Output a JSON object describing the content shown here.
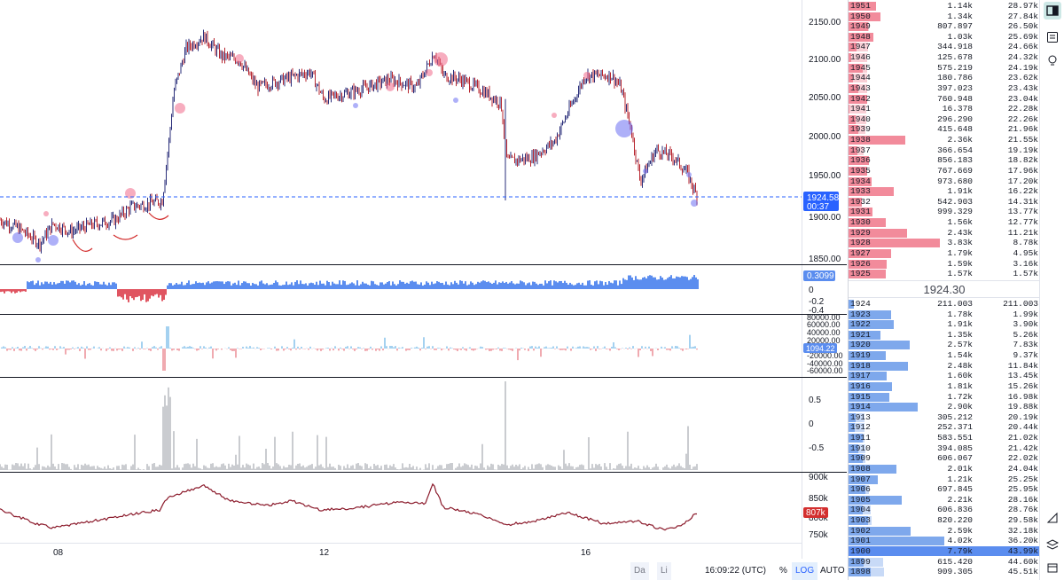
{
  "price_axis": {
    "labels": [
      "2150.00",
      "2100.00",
      "2050.00",
      "2000.00",
      "1950.00",
      "1900.00",
      "1850.00"
    ],
    "current_price": "1924.58",
    "countdown": "00:37"
  },
  "indicator1_axis": {
    "labels": [
      "0",
      "-0.2",
      "-0.4"
    ],
    "badge": "0.3099"
  },
  "indicator2_axis": {
    "labels": [
      "80000.00",
      "60000.00",
      "40000.00",
      "20000.00",
      "-20000.00",
      "-40000.00",
      "-60000.00"
    ],
    "badge": "1094.22"
  },
  "indicator3_axis": {
    "labels": [
      "0.5",
      "0",
      "-0.5"
    ]
  },
  "indicator4_axis": {
    "labels": [
      "900k",
      "850k",
      "800k",
      "750k"
    ],
    "badge": "807k"
  },
  "time_axis": {
    "labels": [
      "08",
      "12",
      "16"
    ]
  },
  "bottom_bar": {
    "range1": "Da",
    "range2": "Li",
    "clock": "16:09:22 (UTC)",
    "percent": "%",
    "log": "LOG",
    "auto": "AUTO"
  },
  "order_book": {
    "mid_price": "1924.30",
    "asks": [
      {
        "price": "1951",
        "vol": "1.14k",
        "cum": "28.97k",
        "v": 1140,
        "c": 28970
      },
      {
        "price": "1950",
        "vol": "1.34k",
        "cum": "27.84k",
        "v": 1340,
        "c": 27840
      },
      {
        "price": "1949",
        "vol": "807.897",
        "cum": "26.50k",
        "v": 808,
        "c": 26500
      },
      {
        "price": "1948",
        "vol": "1.03k",
        "cum": "25.69k",
        "v": 1030,
        "c": 25690
      },
      {
        "price": "1947",
        "vol": "344.918",
        "cum": "24.66k",
        "v": 345,
        "c": 24660
      },
      {
        "price": "1946",
        "vol": "125.678",
        "cum": "24.32k",
        "v": 126,
        "c": 24320
      },
      {
        "price": "1945",
        "vol": "575.219",
        "cum": "24.19k",
        "v": 575,
        "c": 24190
      },
      {
        "price": "1944",
        "vol": "180.786",
        "cum": "23.62k",
        "v": 181,
        "c": 23620
      },
      {
        "price": "1943",
        "vol": "397.023",
        "cum": "23.43k",
        "v": 397,
        "c": 23430
      },
      {
        "price": "1942",
        "vol": "760.948",
        "cum": "23.04k",
        "v": 761,
        "c": 23040
      },
      {
        "price": "1941",
        "vol": "16.378",
        "cum": "22.28k",
        "v": 16,
        "c": 22280
      },
      {
        "price": "1940",
        "vol": "296.290",
        "cum": "22.26k",
        "v": 296,
        "c": 22260
      },
      {
        "price": "1939",
        "vol": "415.648",
        "cum": "21.96k",
        "v": 416,
        "c": 21960
      },
      {
        "price": "1938",
        "vol": "2.36k",
        "cum": "21.55k",
        "v": 2360,
        "c": 21550
      },
      {
        "price": "1937",
        "vol": "366.654",
        "cum": "19.19k",
        "v": 367,
        "c": 19190
      },
      {
        "price": "1936",
        "vol": "856.183",
        "cum": "18.82k",
        "v": 856,
        "c": 18820
      },
      {
        "price": "1935",
        "vol": "767.669",
        "cum": "17.96k",
        "v": 768,
        "c": 17960
      },
      {
        "price": "1934",
        "vol": "973.680",
        "cum": "17.20k",
        "v": 974,
        "c": 17200
      },
      {
        "price": "1933",
        "vol": "1.91k",
        "cum": "16.22k",
        "v": 1910,
        "c": 16220
      },
      {
        "price": "1932",
        "vol": "542.903",
        "cum": "14.31k",
        "v": 543,
        "c": 14310
      },
      {
        "price": "1931",
        "vol": "999.329",
        "cum": "13.77k",
        "v": 999,
        "c": 13770
      },
      {
        "price": "1930",
        "vol": "1.56k",
        "cum": "12.77k",
        "v": 1560,
        "c": 12770
      },
      {
        "price": "1929",
        "vol": "2.43k",
        "cum": "11.21k",
        "v": 2430,
        "c": 11210
      },
      {
        "price": "1928",
        "vol": "3.83k",
        "cum": "8.78k",
        "v": 3830,
        "c": 8780
      },
      {
        "price": "1927",
        "vol": "1.79k",
        "cum": "4.95k",
        "v": 1790,
        "c": 4950
      },
      {
        "price": "1926",
        "vol": "1.59k",
        "cum": "3.16k",
        "v": 1590,
        "c": 3160
      },
      {
        "price": "1925",
        "vol": "1.57k",
        "cum": "1.57k",
        "v": 1570,
        "c": 1570
      }
    ],
    "bids": [
      {
        "price": "1924",
        "vol": "211.003",
        "cum": "211.003",
        "v": 211,
        "c": 211
      },
      {
        "price": "1923",
        "vol": "1.78k",
        "cum": "1.99k",
        "v": 1780,
        "c": 1990
      },
      {
        "price": "1922",
        "vol": "1.91k",
        "cum": "3.90k",
        "v": 1910,
        "c": 3900
      },
      {
        "price": "1921",
        "vol": "1.35k",
        "cum": "5.26k",
        "v": 1350,
        "c": 5260
      },
      {
        "price": "1920",
        "vol": "2.57k",
        "cum": "7.83k",
        "v": 2570,
        "c": 7830
      },
      {
        "price": "1919",
        "vol": "1.54k",
        "cum": "9.37k",
        "v": 1540,
        "c": 9370
      },
      {
        "price": "1918",
        "vol": "2.48k",
        "cum": "11.84k",
        "v": 2480,
        "c": 11840
      },
      {
        "price": "1917",
        "vol": "1.60k",
        "cum": "13.45k",
        "v": 1600,
        "c": 13450
      },
      {
        "price": "1916",
        "vol": "1.81k",
        "cum": "15.26k",
        "v": 1810,
        "c": 15260
      },
      {
        "price": "1915",
        "vol": "1.72k",
        "cum": "16.98k",
        "v": 1720,
        "c": 16980
      },
      {
        "price": "1914",
        "vol": "2.90k",
        "cum": "19.88k",
        "v": 2900,
        "c": 19880
      },
      {
        "price": "1913",
        "vol": "305.212",
        "cum": "20.19k",
        "v": 305,
        "c": 20190
      },
      {
        "price": "1912",
        "vol": "252.371",
        "cum": "20.44k",
        "v": 252,
        "c": 20440
      },
      {
        "price": "1911",
        "vol": "583.551",
        "cum": "21.02k",
        "v": 584,
        "c": 21020
      },
      {
        "price": "1910",
        "vol": "394.085",
        "cum": "21.42k",
        "v": 394,
        "c": 21420
      },
      {
        "price": "1909",
        "vol": "606.067",
        "cum": "22.02k",
        "v": 606,
        "c": 22020
      },
      {
        "price": "1908",
        "vol": "2.01k",
        "cum": "24.04k",
        "v": 2010,
        "c": 24040
      },
      {
        "price": "1907",
        "vol": "1.21k",
        "cum": "25.25k",
        "v": 1210,
        "c": 25250
      },
      {
        "price": "1906",
        "vol": "697.845",
        "cum": "25.95k",
        "v": 698,
        "c": 25950
      },
      {
        "price": "1905",
        "vol": "2.21k",
        "cum": "28.16k",
        "v": 2210,
        "c": 28160
      },
      {
        "price": "1904",
        "vol": "606.836",
        "cum": "28.76k",
        "v": 607,
        "c": 28760
      },
      {
        "price": "1903",
        "vol": "820.220",
        "cum": "29.58k",
        "v": 820,
        "c": 29580
      },
      {
        "price": "1902",
        "vol": "2.59k",
        "cum": "32.18k",
        "v": 2590,
        "c": 32180
      },
      {
        "price": "1901",
        "vol": "4.02k",
        "cum": "36.20k",
        "v": 4020,
        "c": 36200
      },
      {
        "price": "1900",
        "vol": "7.79k",
        "cum": "43.99k",
        "v": 7790,
        "c": 43990
      },
      {
        "price": "1899",
        "vol": "615.420",
        "cum": "44.60k",
        "v": 615,
        "c": 44600
      },
      {
        "price": "1898",
        "vol": "909.305",
        "cum": "45.51k",
        "v": 909,
        "c": 45510
      }
    ]
  },
  "colors": {
    "ask": "#f28b9b",
    "ask_light": "#f9d0d6",
    "bid": "#7ea8ec",
    "bid_light": "#c8daf7",
    "candle_up": "#2a2e7a",
    "candle_down": "#b7262f",
    "accent": "#2962ff"
  },
  "right_toolbar_icons": [
    "book-icon",
    "list-icon",
    "grid-icon",
    "bulb-icon",
    "calendar-icon",
    "drawing-icon",
    "layers-icon"
  ]
}
